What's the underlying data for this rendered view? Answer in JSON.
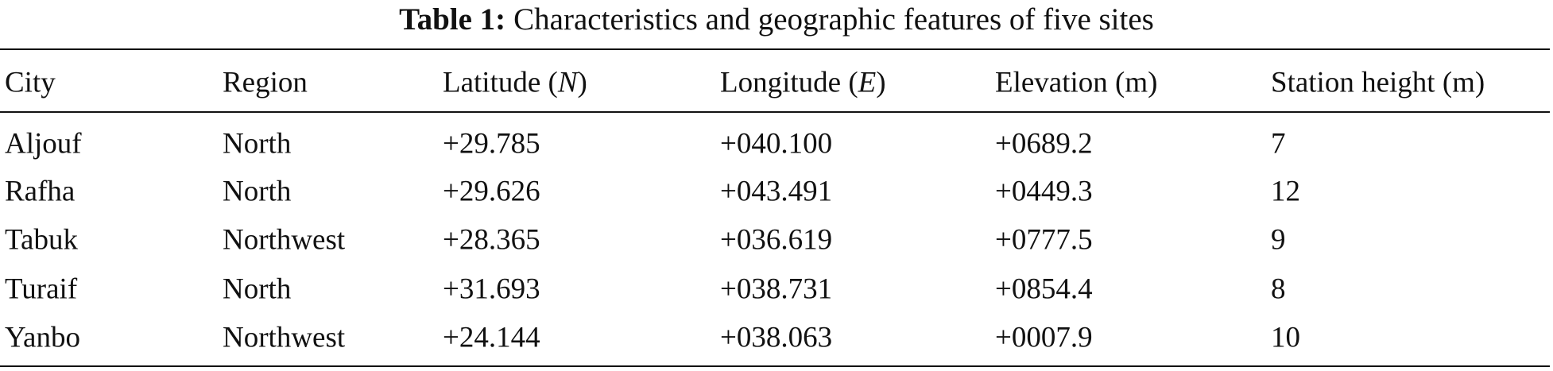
{
  "caption": {
    "label": "Table 1:",
    "text": "Characteristics and geographic features of five sites"
  },
  "table": {
    "headers": [
      "City",
      "Region",
      [
        "Latitude (",
        "N",
        ")"
      ],
      [
        "Longitude (",
        "E",
        ")"
      ],
      "Elevation (m)",
      "Station height (m)"
    ],
    "rows": [
      [
        "Aljouf",
        "North",
        "+29.785",
        "+040.100",
        "+0689.2",
        "7"
      ],
      [
        "Rafha",
        "North",
        "+29.626",
        "+043.491",
        "+0449.3",
        "12"
      ],
      [
        "Tabuk",
        "Northwest",
        "+28.365",
        "+036.619",
        "+0777.5",
        "9"
      ],
      [
        "Turaif",
        "North",
        "+31.693",
        "+038.731",
        "+0854.4",
        "8"
      ],
      [
        "Yanbo",
        "Northwest",
        "+24.144",
        "+038.063",
        "+0007.9",
        "10"
      ]
    ]
  }
}
